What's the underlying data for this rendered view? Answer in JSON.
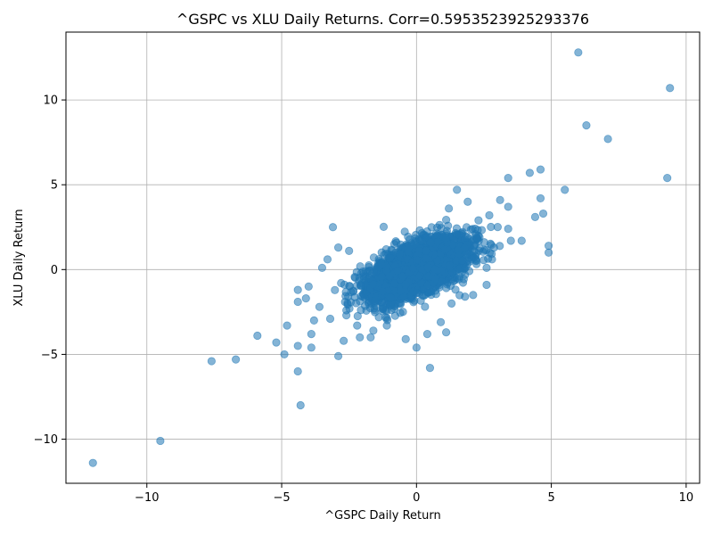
{
  "chart_data": {
    "type": "scatter",
    "title": "^GSPC vs XLU Daily Returns. Corr=0.5953523925293376",
    "xlabel": "^GSPC Daily Return",
    "ylabel": "XLU Daily Return",
    "xlim": [
      -13,
      10.5
    ],
    "ylim": [
      -12.6,
      14.0
    ],
    "xticks": [
      -10,
      -5,
      0,
      5,
      10
    ],
    "yticks": [
      -10,
      -5,
      0,
      5,
      10
    ],
    "xtick_labels": [
      "−10",
      "−5",
      "0",
      "5",
      "10"
    ],
    "ytick_labels": [
      "−10",
      "−5",
      "0",
      "5",
      "10"
    ],
    "grid": true,
    "marker_color": "#1f77b4",
    "marker_alpha": 0.55,
    "series": [
      {
        "points": [
          [
            -12.0,
            -11.4
          ],
          [
            -9.5,
            -10.1
          ],
          [
            -7.6,
            -5.4
          ],
          [
            -6.7,
            -5.3
          ],
          [
            -5.9,
            -3.9
          ],
          [
            -5.2,
            -4.3
          ],
          [
            -4.9,
            -5.0
          ],
          [
            -4.8,
            -3.3
          ],
          [
            -4.4,
            -6.0
          ],
          [
            -4.3,
            -8.0
          ],
          [
            -4.4,
            -4.5
          ],
          [
            -3.9,
            -4.6
          ],
          [
            -3.9,
            -3.8
          ],
          [
            -4.4,
            -1.2
          ],
          [
            -4.4,
            -1.9
          ],
          [
            -4.0,
            -1.0
          ],
          [
            -3.5,
            0.1
          ],
          [
            -3.3,
            0.6
          ],
          [
            -3.1,
            2.5
          ],
          [
            -2.9,
            1.3
          ],
          [
            -2.5,
            1.1
          ],
          [
            -2.9,
            -5.1
          ],
          [
            -2.7,
            -4.2
          ],
          [
            -2.1,
            -4.0
          ],
          [
            -2.2,
            -3.3
          ],
          [
            -1.6,
            -3.6
          ],
          [
            -1.7,
            -4.0
          ],
          [
            -1.1,
            -3.3
          ],
          [
            -0.4,
            -4.1
          ],
          [
            -0.0,
            -4.6
          ],
          [
            0.5,
            -5.8
          ],
          [
            0.4,
            -3.8
          ],
          [
            1.1,
            -3.7
          ],
          [
            0.9,
            -3.1
          ],
          [
            1.8,
            -1.6
          ],
          [
            -3.6,
            -2.2
          ],
          [
            -3.8,
            -3.0
          ],
          [
            -3.2,
            -2.9
          ],
          [
            -2.6,
            -2.7
          ],
          [
            -4.1,
            -1.7
          ],
          [
            6.0,
            12.8
          ],
          [
            9.4,
            10.7
          ],
          [
            6.3,
            8.5
          ],
          [
            7.1,
            7.7
          ],
          [
            5.5,
            4.7
          ],
          [
            4.6,
            5.9
          ],
          [
            4.2,
            5.7
          ],
          [
            3.4,
            5.4
          ],
          [
            9.3,
            5.4
          ],
          [
            4.6,
            4.2
          ],
          [
            4.7,
            3.3
          ],
          [
            4.9,
            1.4
          ],
          [
            4.9,
            1.0
          ],
          [
            4.4,
            3.1
          ],
          [
            3.9,
            1.7
          ],
          [
            3.4,
            3.7
          ],
          [
            3.1,
            4.1
          ],
          [
            1.5,
            4.7
          ],
          [
            1.9,
            4.0
          ],
          [
            1.2,
            3.6
          ],
          [
            3.4,
            2.4
          ],
          [
            3.5,
            1.7
          ],
          [
            2.7,
            3.2
          ],
          [
            2.3,
            2.9
          ],
          [
            2.8,
            0.6
          ],
          [
            2.6,
            -0.9
          ],
          [
            2.6,
            0.1
          ],
          [
            2.1,
            -1.5
          ],
          [
            1.5,
            -0.5
          ],
          [
            1.3,
            -2.0
          ]
        ]
      }
    ]
  }
}
